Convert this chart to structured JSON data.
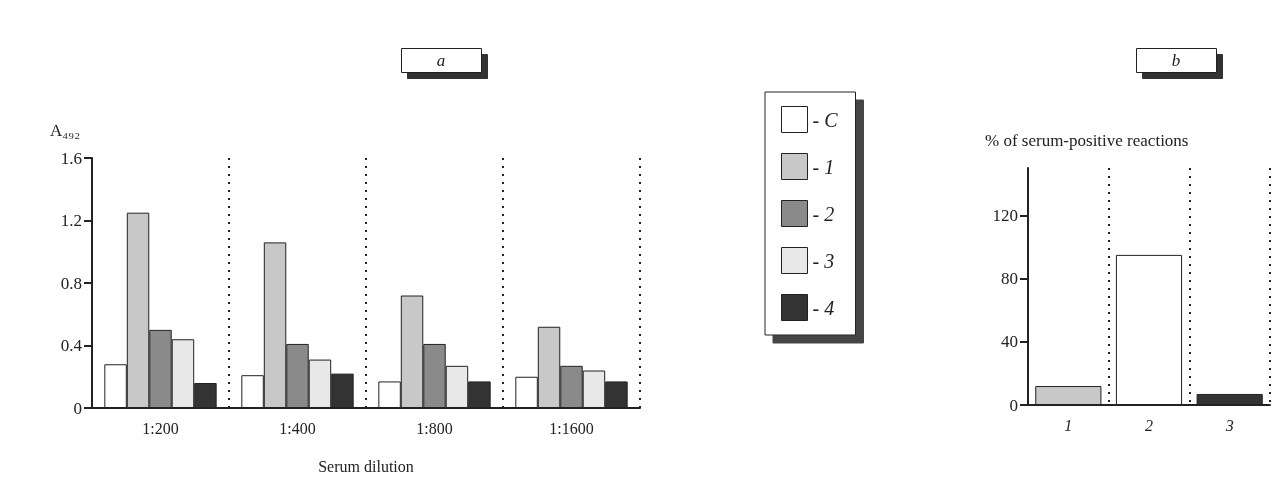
{
  "chart_data": [
    {
      "type": "bar",
      "title": "a",
      "xlabel": "Serum dilution",
      "ylabel": "A₄₉₂",
      "categories": [
        "1:200",
        "1:400",
        "1:800",
        "1:1600"
      ],
      "series": [
        {
          "name": "- C",
          "color": "#ffffff",
          "values": [
            0.28,
            0.21,
            0.17,
            0.2
          ]
        },
        {
          "name": "- 1",
          "color": "#c8c8c8",
          "values": [
            1.25,
            1.06,
            0.72,
            0.52
          ]
        },
        {
          "name": "- 2",
          "color": "#8a8a8a",
          "values": [
            0.5,
            0.41,
            0.41,
            0.27
          ]
        },
        {
          "name": "- 3",
          "color": "#e8e8e8",
          "values": [
            0.44,
            0.31,
            0.27,
            0.24
          ]
        },
        {
          "name": "- 4",
          "color": "#333333",
          "values": [
            0.16,
            0.22,
            0.17,
            0.17
          ]
        }
      ],
      "ylim": [
        0,
        1.6
      ],
      "yticks": [
        0,
        0.4,
        0.8,
        1.2,
        1.6
      ],
      "grid": "x",
      "legend": "right"
    },
    {
      "type": "bar",
      "title": "b",
      "ylabel": "% of serum-positive reactions",
      "categories": [
        "1",
        "2",
        "3"
      ],
      "values": [
        12,
        95,
        7
      ],
      "colors": [
        "#c8c8c8",
        "#ffffff",
        "#333333"
      ],
      "ylim": [
        0,
        150
      ],
      "yticks": [
        0,
        40,
        80,
        120
      ],
      "grid": "x",
      "legend": false
    }
  ]
}
